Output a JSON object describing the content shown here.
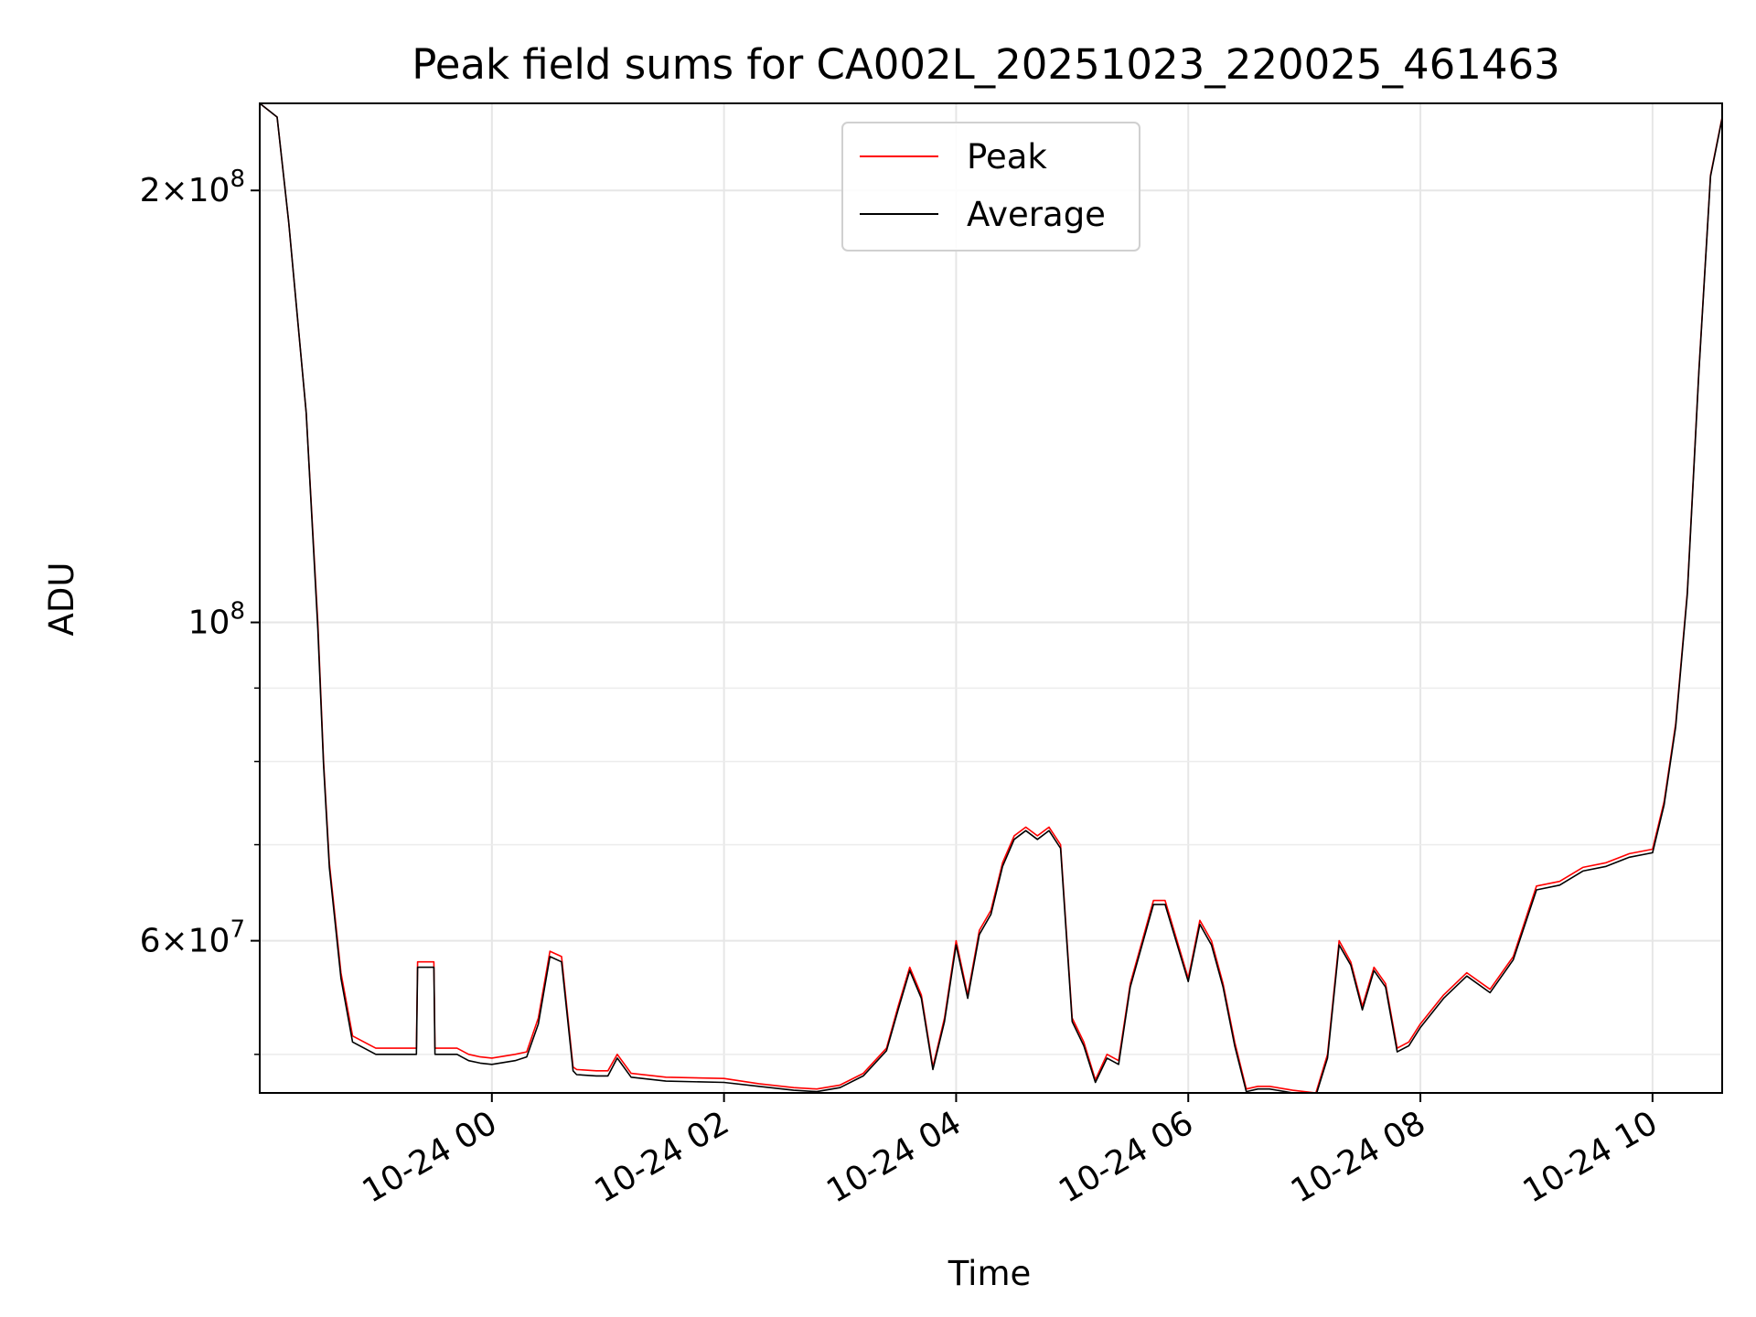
{
  "chart_data": {
    "type": "line",
    "title": "Peak field sums for CA002L_20251023_220025_461463",
    "xlabel": "Time",
    "ylabel": "ADU",
    "yscale": "log",
    "grid": true,
    "legend_position": "upper-center",
    "x_range_hours": [
      -2.0,
      10.6
    ],
    "x_unit": "hours relative to 10-24 00:00",
    "ylim": [
      47000000,
      230000000
    ],
    "x_ticks": [
      {
        "value": 0,
        "label": "10-24 00"
      },
      {
        "value": 2,
        "label": "10-24 02"
      },
      {
        "value": 4,
        "label": "10-24 04"
      },
      {
        "value": 6,
        "label": "10-24 06"
      },
      {
        "value": 8,
        "label": "10-24 08"
      },
      {
        "value": 10,
        "label": "10-24 10"
      }
    ],
    "y_ticks_major": [
      {
        "value": 200000000,
        "label_base": "2×10",
        "label_exp": "8"
      },
      {
        "value": 100000000,
        "label_base": "10",
        "label_exp": "8"
      },
      {
        "value": 60000000,
        "label_base": "6×10",
        "label_exp": "7"
      }
    ],
    "y_ticks_minor": [
      50000000,
      70000000,
      80000000,
      90000000
    ],
    "series": [
      {
        "name": "Peak",
        "color": "#ff0000",
        "x": [
          -2.0,
          -1.85,
          -1.75,
          -1.6,
          -1.5,
          -1.45,
          -1.4,
          -1.3,
          -1.2,
          -1.0,
          -0.9,
          -0.7,
          -0.65,
          -0.64,
          -0.5,
          -0.49,
          -0.3,
          -0.2,
          -0.1,
          0.0,
          0.2,
          0.3,
          0.4,
          0.5,
          0.6,
          0.7,
          0.73,
          0.9,
          1.0,
          1.08,
          1.2,
          1.5,
          2.0,
          2.3,
          2.6,
          2.8,
          3.0,
          3.2,
          3.4,
          3.5,
          3.6,
          3.7,
          3.8,
          3.9,
          4.0,
          4.1,
          4.2,
          4.3,
          4.4,
          4.5,
          4.6,
          4.7,
          4.8,
          4.9,
          5.0,
          5.1,
          5.2,
          5.3,
          5.4,
          5.5,
          5.7,
          5.8,
          6.0,
          6.1,
          6.2,
          6.3,
          6.4,
          6.5,
          6.6,
          6.7,
          6.9,
          7.1,
          7.2,
          7.3,
          7.4,
          7.5,
          7.6,
          7.7,
          7.8,
          7.9,
          8.0,
          8.2,
          8.4,
          8.6,
          8.8,
          9.0,
          9.2,
          9.4,
          9.6,
          9.8,
          10.0,
          10.1,
          10.2,
          10.3,
          10.4,
          10.5,
          10.6
        ],
        "values": [
          230000000,
          225000000,
          190000000,
          140000000,
          100000000,
          80000000,
          68000000,
          57000000,
          51500000,
          50500000,
          50500000,
          50500000,
          50500000,
          58000000,
          58000000,
          50500000,
          50500000,
          50000000,
          49800000,
          49700000,
          50000000,
          50200000,
          53000000,
          59000000,
          58500000,
          49000000,
          48800000,
          48700000,
          48700000,
          50000000,
          48500000,
          48200000,
          48100000,
          47700000,
          47400000,
          47300000,
          47600000,
          48500000,
          50500000,
          54000000,
          57500000,
          55000000,
          49000000,
          53000000,
          60000000,
          55000000,
          61000000,
          63000000,
          68000000,
          71000000,
          72000000,
          71000000,
          72000000,
          70000000,
          53000000,
          51000000,
          48000000,
          50000000,
          49500000,
          56000000,
          64000000,
          64000000,
          56500000,
          62000000,
          60000000,
          56000000,
          51000000,
          47300000,
          47500000,
          47500000,
          47200000,
          47000000,
          50000000,
          60000000,
          58000000,
          54000000,
          57500000,
          56000000,
          50500000,
          51000000,
          52500000,
          55000000,
          57000000,
          55500000,
          58500000,
          65500000,
          66000000,
          67500000,
          68000000,
          69000000,
          69500000,
          75000000,
          85000000,
          105000000,
          150000000,
          205000000,
          225000000
        ]
      },
      {
        "name": "Average",
        "color": "#000000",
        "x": [
          -2.0,
          -1.85,
          -1.75,
          -1.6,
          -1.5,
          -1.45,
          -1.4,
          -1.3,
          -1.2,
          -1.0,
          -0.9,
          -0.7,
          -0.65,
          -0.64,
          -0.5,
          -0.49,
          -0.3,
          -0.2,
          -0.1,
          0.0,
          0.2,
          0.3,
          0.4,
          0.5,
          0.6,
          0.7,
          0.73,
          0.9,
          1.0,
          1.08,
          1.2,
          1.5,
          2.0,
          2.3,
          2.6,
          2.8,
          3.0,
          3.2,
          3.4,
          3.5,
          3.6,
          3.7,
          3.8,
          3.9,
          4.0,
          4.1,
          4.2,
          4.3,
          4.4,
          4.5,
          4.6,
          4.7,
          4.8,
          4.9,
          5.0,
          5.1,
          5.2,
          5.3,
          5.4,
          5.5,
          5.7,
          5.8,
          6.0,
          6.1,
          6.2,
          6.3,
          6.4,
          6.5,
          6.6,
          6.7,
          6.9,
          7.1,
          7.2,
          7.3,
          7.4,
          7.5,
          7.6,
          7.7,
          7.8,
          7.9,
          8.0,
          8.2,
          8.4,
          8.6,
          8.8,
          9.0,
          9.2,
          9.4,
          9.6,
          9.8,
          10.0,
          10.1,
          10.2,
          10.3,
          10.4,
          10.5,
          10.6
        ],
        "values": [
          230000000,
          225000000,
          190000000,
          140000000,
          99000000,
          79500000,
          67500000,
          56500000,
          51000000,
          50000000,
          50000000,
          50000000,
          50000000,
          57500000,
          57500000,
          50000000,
          50000000,
          49500000,
          49300000,
          49200000,
          49500000,
          49800000,
          52500000,
          58500000,
          58000000,
          48700000,
          48400000,
          48300000,
          48300000,
          49700000,
          48200000,
          47900000,
          47800000,
          47500000,
          47200000,
          47100000,
          47400000,
          48300000,
          50300000,
          53700000,
          57200000,
          54700000,
          48800000,
          52700000,
          59600000,
          54700000,
          60600000,
          62600000,
          67600000,
          70600000,
          71600000,
          70600000,
          71600000,
          69600000,
          52700000,
          50700000,
          47800000,
          49700000,
          49200000,
          55700000,
          63600000,
          63600000,
          56200000,
          61600000,
          59600000,
          55700000,
          50700000,
          47100000,
          47300000,
          47300000,
          47000000,
          46800000,
          49700000,
          59600000,
          57700000,
          53700000,
          57200000,
          55700000,
          50200000,
          50700000,
          52200000,
          54700000,
          56700000,
          55200000,
          58200000,
          65100000,
          65600000,
          67100000,
          67600000,
          68600000,
          69100000,
          74600000,
          84600000,
          104600000,
          149600000,
          204600000,
          224600000
        ]
      }
    ]
  }
}
